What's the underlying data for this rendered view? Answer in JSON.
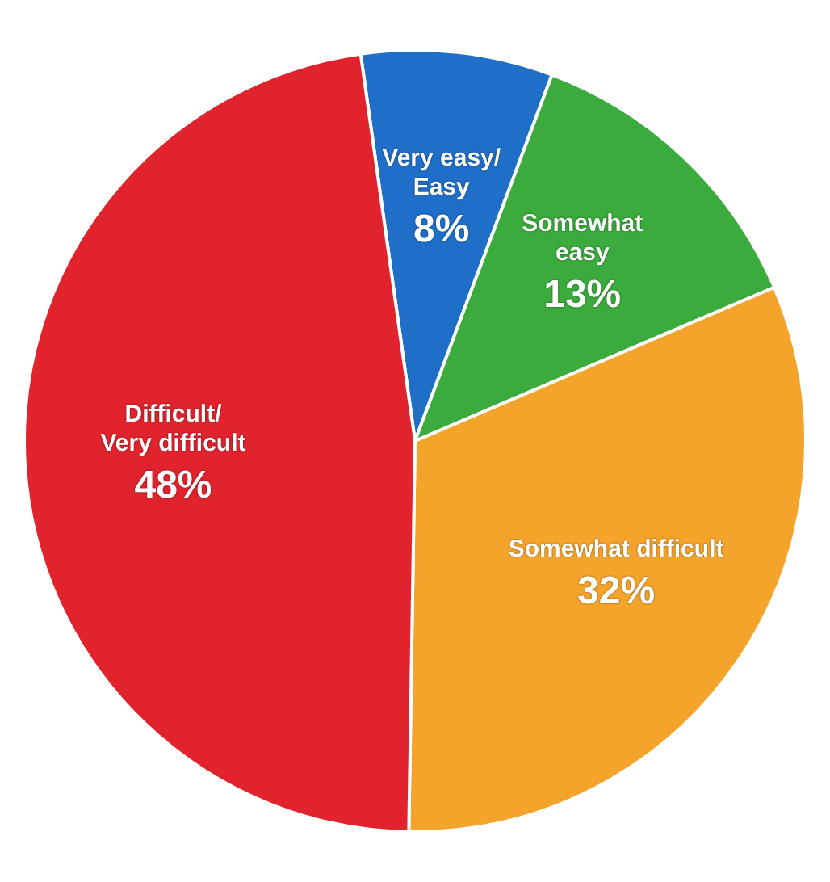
{
  "chart_data": {
    "type": "pie",
    "categories": [
      "Very easy/\nEasy",
      "Somewhat\neasy",
      "Somewhat difficult",
      "Difficult/\nVery difficult"
    ],
    "values": [
      8,
      13,
      32,
      48
    ],
    "colors": [
      "#1f6fc8",
      "#3aab3c",
      "#f4a42a",
      "#e0232c"
    ],
    "value_labels": [
      "8%",
      "13%",
      "32%",
      "48%"
    ],
    "legend": false
  }
}
